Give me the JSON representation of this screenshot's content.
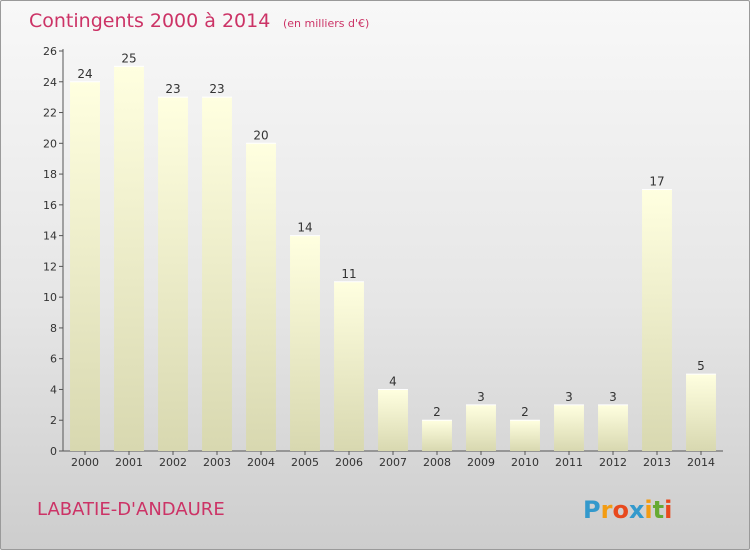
{
  "chart_data": {
    "type": "bar",
    "title": "Contingents 2000 à 2014",
    "subtitle": "(en milliers d'€)",
    "xlabel": "",
    "ylabel": "",
    "categories": [
      "2000",
      "2001",
      "2002",
      "2003",
      "2004",
      "2005",
      "2006",
      "2007",
      "2008",
      "2009",
      "2010",
      "2011",
      "2012",
      "2013",
      "2014"
    ],
    "values": [
      24,
      25,
      23,
      23,
      20,
      14,
      11,
      4,
      2,
      3,
      2,
      3,
      3,
      17,
      5
    ],
    "ylim": [
      0,
      26
    ],
    "yticks": [
      0,
      2,
      4,
      6,
      8,
      10,
      12,
      14,
      16,
      18,
      20,
      22,
      24,
      26
    ],
    "grid": false,
    "legend": "none",
    "bar_color_top": "#ffffe0",
    "bar_color_bottom": "#d8d8b0"
  },
  "footer": {
    "place": "LABATIE-D'ANDAURE",
    "logo_letters": [
      "P",
      "r",
      "o",
      "x",
      "i",
      "t",
      "i"
    ],
    "logo_colors": [
      "#3399cc",
      "#f39c12",
      "#e8491d",
      "#3399cc",
      "#f39c12",
      "#66aa33",
      "#e8491d"
    ]
  },
  "colors": {
    "accent": "#cc3366",
    "axis": "#555555"
  }
}
